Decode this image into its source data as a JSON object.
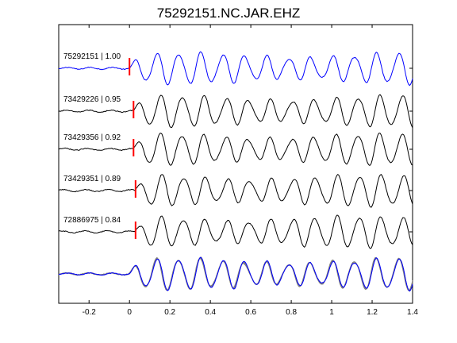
{
  "chart_data": {
    "type": "line",
    "title": "75292151.NC.JAR.EHZ",
    "xlabel": "",
    "ylabel": "",
    "xlim": [
      -0.35,
      1.4
    ],
    "x_ticks": [
      "-0.2",
      "0",
      "0.2",
      "0.4",
      "0.6",
      "0.8",
      "1",
      "1.2",
      "1.4"
    ],
    "x_tick_values": [
      -0.2,
      0,
      0.2,
      0.4,
      0.6,
      0.8,
      1.0,
      1.2,
      1.4
    ],
    "series": [
      {
        "name": "75292151 | 1.00",
        "color": "#0000ff",
        "pick_time": 0.0
      },
      {
        "name": "73429226 | 0.95",
        "color": "#000000",
        "pick_time": 0.02
      },
      {
        "name": "73429356 | 0.92",
        "color": "#000000",
        "pick_time": 0.02
      },
      {
        "name": "73429351 | 0.89",
        "color": "#000000",
        "pick_time": 0.03
      },
      {
        "name": "72886975 | 0.84",
        "color": "#000000",
        "pick_time": 0.03
      }
    ],
    "stack": {
      "reference_color": "#0000ff",
      "others_color": "#808080"
    },
    "pick_color": "#ff0000"
  }
}
